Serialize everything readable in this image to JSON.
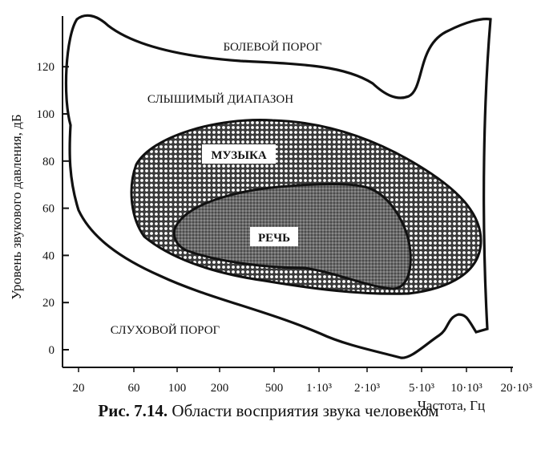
{
  "chart_data": {
    "type": "area",
    "xlabel": "Частота, Гц",
    "ylabel": "Уровень звукового давления, дБ",
    "x_ticks": [
      "20",
      "60",
      "100",
      "200",
      "500",
      "1·10³",
      "2·10³",
      "5·10³",
      "10·10³",
      "20·10³"
    ],
    "y_ticks": [
      0,
      20,
      40,
      60,
      80,
      100,
      120
    ],
    "ylim": [
      -5,
      135
    ],
    "regions": [
      {
        "name": "СЛЫШИМЫЙ ДИАПАЗОН",
        "fill": "none"
      },
      {
        "name": "МУЗЫКА",
        "fill": "dots"
      },
      {
        "name": "РЕЧЬ",
        "fill": "crosshatch"
      }
    ],
    "curves": [
      {
        "name": "БОЛЕВОЙ ПОРОГ",
        "points": [
          [
            20,
            125
          ],
          [
            25,
            130
          ],
          [
            30,
            129
          ],
          [
            40,
            124
          ],
          [
            60,
            122
          ],
          [
            100,
            121
          ],
          [
            200,
            120
          ],
          [
            500,
            119
          ],
          [
            1000,
            118
          ],
          [
            2000,
            113
          ],
          [
            3500,
            106
          ],
          [
            5000,
            112
          ],
          [
            7000,
            128
          ],
          [
            10000,
            130
          ],
          [
            20000,
            130
          ]
        ]
      },
      {
        "name": "СЛУХОВОЙ ПОРОГ",
        "points": [
          [
            18,
            95
          ],
          [
            20,
            80
          ],
          [
            30,
            45
          ],
          [
            60,
            24
          ],
          [
            100,
            18
          ],
          [
            200,
            12
          ],
          [
            500,
            6
          ],
          [
            1000,
            3
          ],
          [
            2000,
            1
          ],
          [
            3500,
            -3
          ],
          [
            5000,
            3
          ],
          [
            8000,
            13
          ],
          [
            10000,
            12
          ],
          [
            15000,
            16
          ],
          [
            20000,
            60
          ]
        ]
      }
    ],
    "annotations": [
      "БОЛЕВОЙ ПОРОГ",
      "СЛЫШИМЫЙ ДИАПАЗОН",
      "МУЗЫКА",
      "РЕЧЬ",
      "СЛУХОВОЙ ПОРОГ"
    ]
  },
  "caption": {
    "label": "Рис. 7.14.",
    "text": " Области восприятия звука человеком"
  }
}
